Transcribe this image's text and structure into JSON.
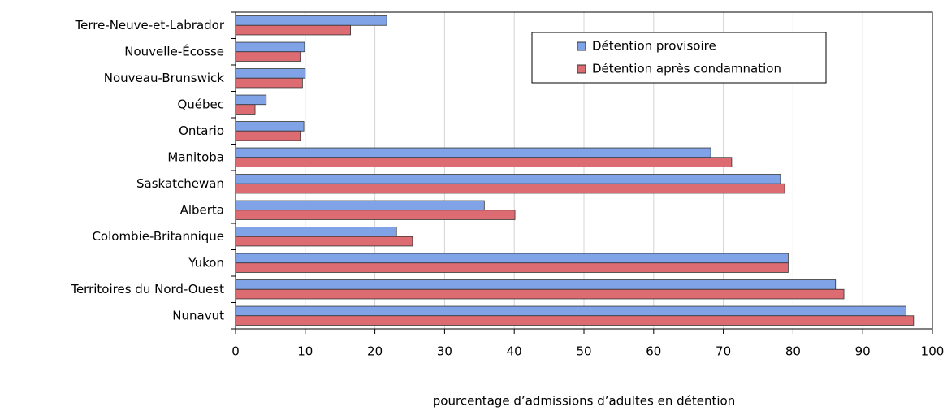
{
  "chart_data": {
    "type": "barh",
    "xlabel": "pourcentage d’admissions d’adultes en détention",
    "categories": [
      "Terre-Neuve-et-Labrador",
      "Nouvelle-Écosse",
      "Nouveau-Brunswick",
      "Québec",
      "Ontario",
      "Manitoba",
      "Saskatchewan",
      "Alberta",
      "Colombie-Britannique",
      "Yukon",
      "Territoires du Nord-Ouest",
      "Nunavut"
    ],
    "series": [
      {
        "name": "Détention provisoire",
        "color": "#7fa3e6",
        "values": [
          21.7,
          9.9,
          10,
          4.4,
          9.8,
          68.2,
          78.2,
          35.7,
          23.1,
          79.3,
          86.1,
          96.2
        ]
      },
      {
        "name": "Détention après condamnation",
        "color": "#dd6b72",
        "values": [
          16.5,
          9.3,
          9.6,
          2.8,
          9.3,
          71.2,
          78.8,
          40.1,
          25.4,
          79.3,
          87.3,
          97.3
        ]
      }
    ],
    "xlim": [
      0,
      100
    ],
    "xticks": [
      0,
      10,
      20,
      30,
      40,
      50,
      60,
      70,
      80,
      90,
      100
    ],
    "grid": true,
    "legend": "upper right"
  }
}
